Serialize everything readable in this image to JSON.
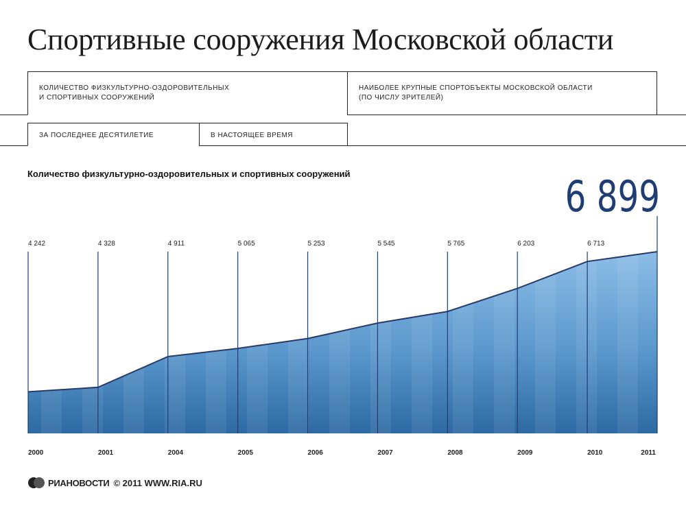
{
  "title": "Спортивные сооружения Московской области",
  "main_tabs": [
    {
      "label_line1": "Количество физкультурно-оздоровительных",
      "label_line2": "и спортивных сооружений",
      "active": true
    },
    {
      "label_line1": "Наиболее крупные спортобъекты Московской области",
      "label_line2": "(по числу зрителей)",
      "active": false
    }
  ],
  "sub_tabs": [
    {
      "label": "за последнее десятилетие",
      "active": true
    },
    {
      "label": "в настоящее время",
      "active": false
    }
  ],
  "chart_heading": "Количество физкультурно-оздоровительных и спортивных сооружений",
  "chart_data": {
    "type": "area",
    "x": [
      "2000",
      "2001",
      "2004",
      "2005",
      "2006",
      "2007",
      "2008",
      "2009",
      "2010",
      "2011"
    ],
    "value_labels": [
      "4 242",
      "4 328",
      "4 911",
      "5 065",
      "5 253",
      "5 545",
      "5 765",
      "6 203",
      "6 713",
      "6 899"
    ],
    "values": [
      4242,
      4328,
      4911,
      5065,
      5253,
      5545,
      5765,
      6203,
      6713,
      6899
    ],
    "highlight_label": "6 899",
    "colors": {
      "fill_top": "#7fb4e0",
      "fill_bottom": "#2f6fa8",
      "line": "#1f3d73",
      "highlight": "#1f3d73"
    }
  },
  "footer": {
    "agency": "РИАНОВОСТИ",
    "copyright": "© 2011 WWW.RIA.RU"
  }
}
